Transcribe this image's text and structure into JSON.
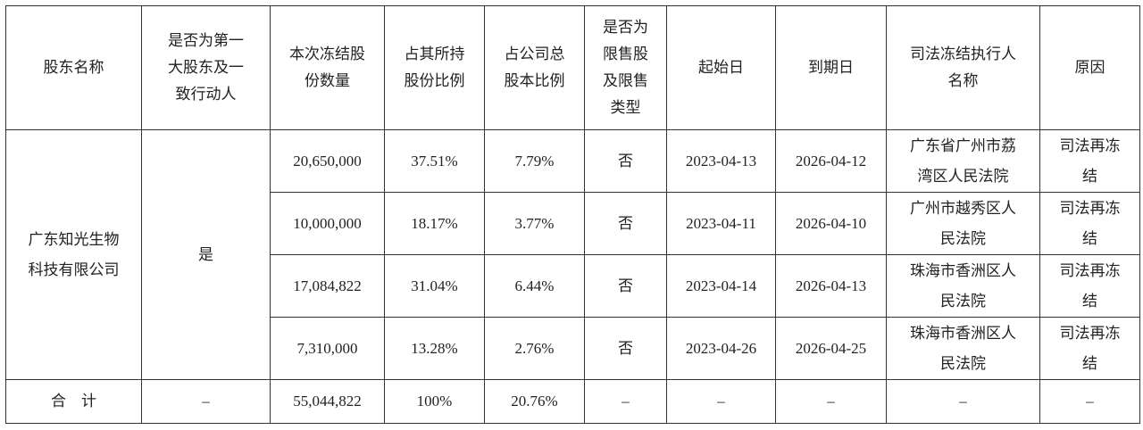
{
  "table": {
    "header": [
      [
        "股东名称"
      ],
      [
        "是否为第一",
        "大股东及一",
        "致行动人"
      ],
      [
        "本次冻结股",
        "份数量"
      ],
      [
        "占其所持",
        "股份比例"
      ],
      [
        "占公司总",
        "股本比例"
      ],
      [
        "是否为",
        "限售股",
        "及限售",
        "类型"
      ],
      [
        "起始日"
      ],
      [
        "到期日"
      ],
      [
        "司法冻结执行人",
        "名称"
      ],
      [
        "原因"
      ]
    ],
    "shareholder": [
      "广东知光生物",
      "科技有限公司"
    ],
    "is_largest": "是",
    "rows": [
      [
        "20,650,000",
        "37.51%",
        "7.79%",
        "否",
        "2023-04-13",
        "2026-04-12",
        [
          "广东省广州市荔",
          "湾区人民法院"
        ],
        [
          "司法再冻",
          "结"
        ]
      ],
      [
        "10,000,000",
        "18.17%",
        "3.77%",
        "否",
        "2023-04-11",
        "2026-04-10",
        [
          "广州市越秀区人",
          "民法院"
        ],
        [
          "司法再冻",
          "结"
        ]
      ],
      [
        "17,084,822",
        "31.04%",
        "6.44%",
        "否",
        "2023-04-14",
        "2026-04-13",
        [
          "珠海市香洲区人",
          "民法院"
        ],
        [
          "司法再冻",
          "结"
        ]
      ],
      [
        "7,310,000",
        "13.28%",
        "2.76%",
        "否",
        "2023-04-26",
        "2026-04-25",
        [
          "珠海市香洲区人",
          "民法院"
        ],
        [
          "司法再冻",
          "结"
        ]
      ]
    ],
    "total": [
      "合　计",
      "–",
      "55,044,822",
      "100%",
      "20.76%",
      "–",
      "–",
      "–",
      "–",
      "–"
    ]
  }
}
